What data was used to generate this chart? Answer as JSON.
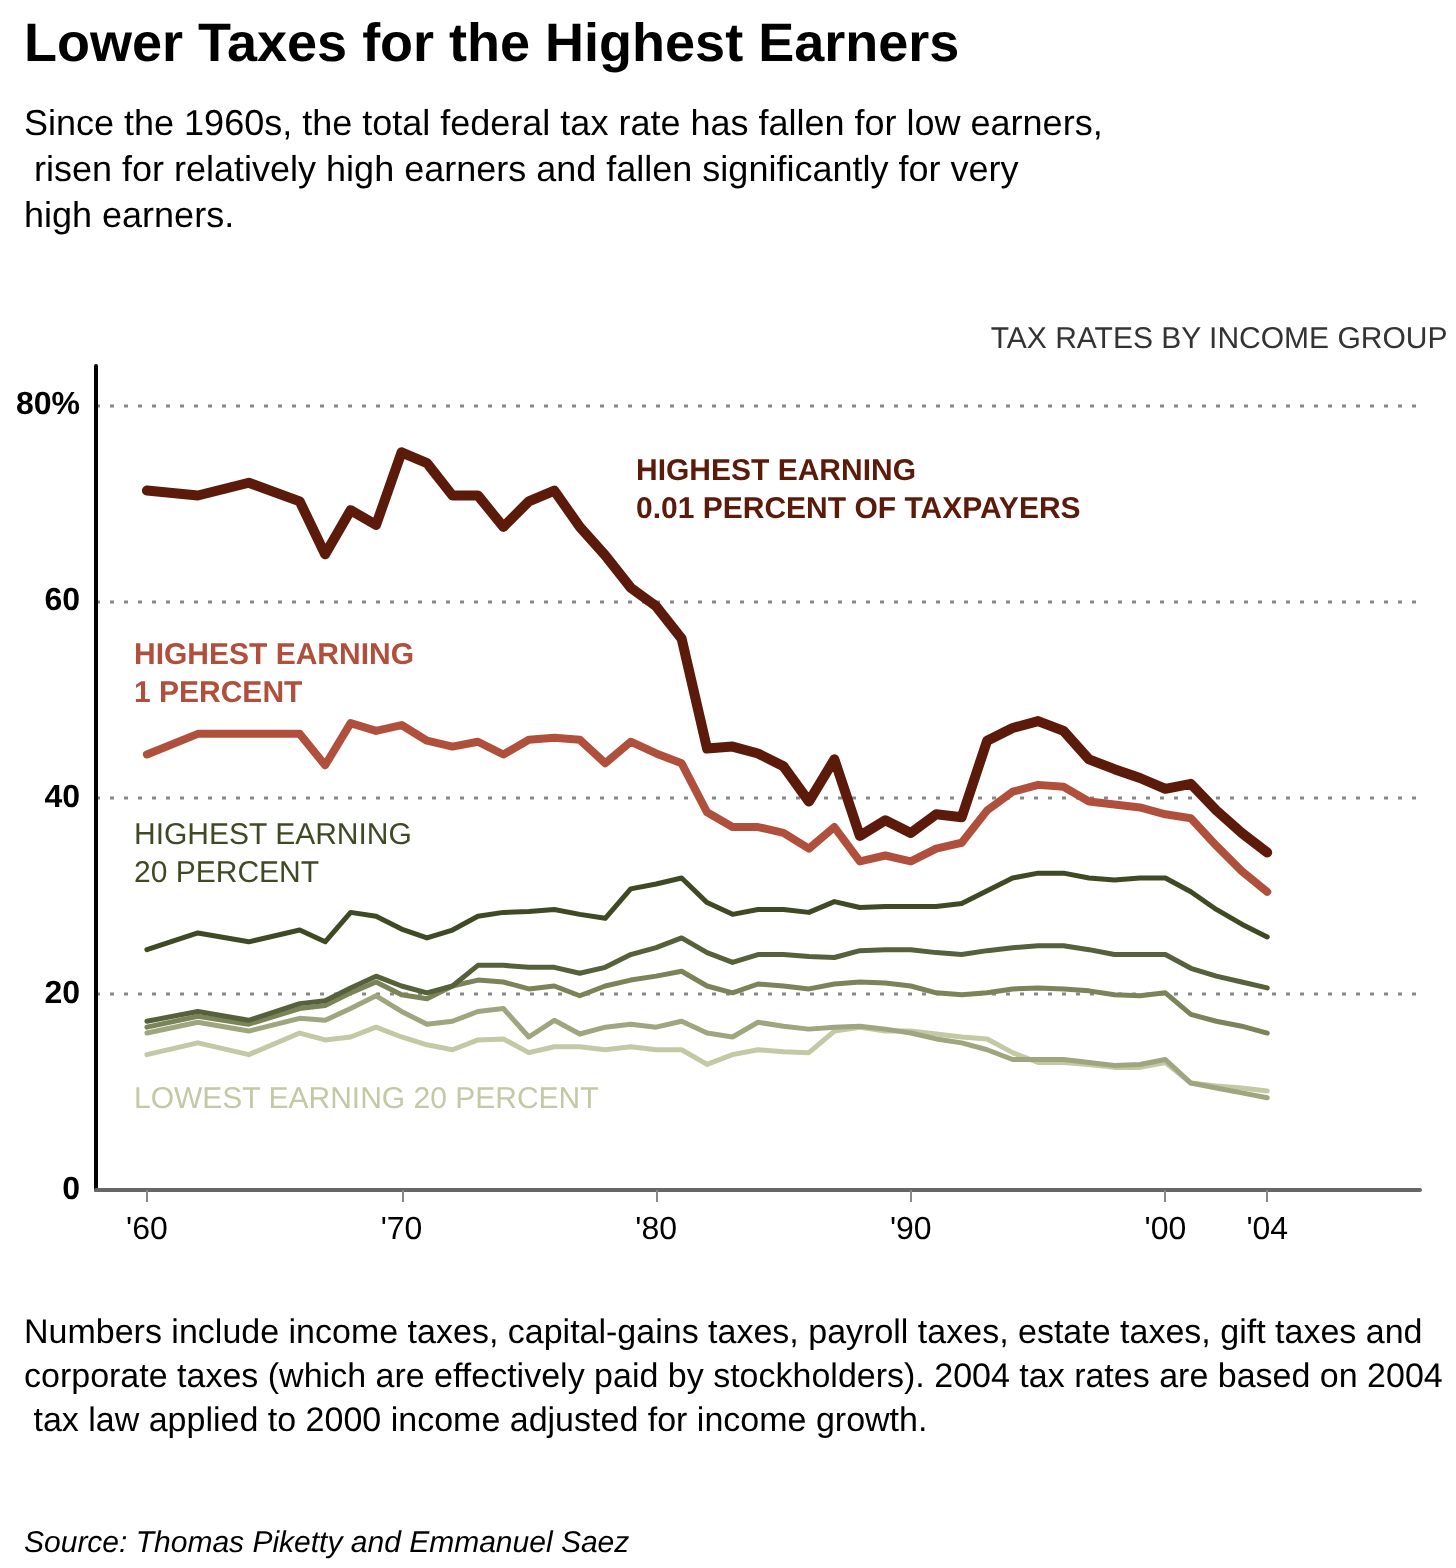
{
  "chart_data": {
    "type": "line",
    "title": "Lower Taxes for the Highest Earners",
    "subtitle": "Since the 1960s, the total federal tax rate has fallen for low earners, risen for relatively high earners and fallen significantly for very high earners.",
    "x": [
      1960,
      1962,
      1964,
      1966,
      1967,
      1968,
      1969,
      1970,
      1971,
      1972,
      1973,
      1974,
      1975,
      1976,
      1977,
      1978,
      1979,
      1980,
      1981,
      1982,
      1983,
      1984,
      1985,
      1986,
      1987,
      1988,
      1989,
      1990,
      1991,
      1992,
      1993,
      1994,
      1995,
      1996,
      1997,
      1998,
      1999,
      2000,
      2001,
      2002,
      2003,
      2004
    ],
    "series": [
      {
        "name": "HIGHEST EARNING 0.01 PERCENT OF TAXPAYERS",
        "color": "#5c1a0b",
        "values": [
          71.3,
          70.8,
          72.1,
          70.2,
          64.8,
          69.3,
          67.8,
          75.2,
          74.1,
          70.8,
          70.8,
          67.6,
          70.2,
          71.3,
          67.6,
          64.7,
          61.4,
          59.5,
          56.2,
          45,
          45.2,
          44.5,
          43.2,
          39.6,
          43.9,
          36.1,
          37.7,
          36.4,
          38.3,
          38,
          45.8,
          47.1,
          47.8,
          46.8,
          43.9,
          42.9,
          42,
          40.9,
          41.4,
          38.7,
          36.4,
          34.4
        ]
      },
      {
        "name": "HIGHEST EARNING 1 PERCENT",
        "color": "#b0503c",
        "values": [
          44.4,
          46.5,
          46.5,
          46.5,
          43.3,
          47.6,
          46.8,
          47.4,
          45.8,
          45.2,
          45.7,
          44.4,
          45.9,
          46.1,
          45.9,
          43.5,
          45.7,
          44.5,
          43.5,
          38.5,
          37,
          37,
          36.4,
          34.8,
          37,
          33.5,
          34.1,
          33.5,
          34.8,
          35.4,
          38.7,
          40.6,
          41.3,
          41.1,
          39.6,
          39.3,
          39,
          38.3,
          37.9,
          35.1,
          32.5,
          30.4
        ]
      },
      {
        "name": "HIGHEST EARNING 20 PERCENT",
        "color": "#3f4a25",
        "values": [
          24.5,
          26.2,
          25.3,
          26.5,
          25.3,
          28.3,
          27.9,
          26.6,
          25.7,
          26.5,
          27.9,
          28.3,
          28.4,
          28.6,
          28.1,
          27.7,
          30.7,
          31.2,
          31.8,
          29.3,
          28.1,
          28.6,
          28.6,
          28.3,
          29.4,
          28.8,
          28.9,
          28.9,
          28.9,
          29.2,
          30.5,
          31.8,
          32.3,
          32.3,
          31.8,
          31.6,
          31.8,
          31.8,
          30.4,
          28.6,
          27.1,
          25.8
        ]
      },
      {
        "color": "#56603a",
        "values": [
          17.2,
          18.2,
          17.3,
          19,
          19.3,
          20.6,
          21.8,
          20.8,
          20.1,
          20.8,
          22.9,
          22.9,
          22.7,
          22.7,
          22.1,
          22.7,
          24,
          24.7,
          25.7,
          24.2,
          23.2,
          24,
          24,
          23.8,
          23.7,
          24.4,
          24.5,
          24.5,
          24.2,
          24,
          24.4,
          24.7,
          24.9,
          24.9,
          24.5,
          24,
          24,
          24,
          22.6,
          21.8,
          21.2,
          20.6
        ]
      },
      {
        "color": "#7a8458",
        "values": [
          16.6,
          17.7,
          16.9,
          18.5,
          18.8,
          20.1,
          21.2,
          19.9,
          19.5,
          20.8,
          21.4,
          21.2,
          20.5,
          20.8,
          19.8,
          20.8,
          21.4,
          21.8,
          22.3,
          20.8,
          20.1,
          21,
          20.8,
          20.5,
          21,
          21.2,
          21.1,
          20.8,
          20.1,
          19.9,
          20.1,
          20.5,
          20.6,
          20.5,
          20.3,
          19.9,
          19.8,
          20.1,
          17.9,
          17.2,
          16.7,
          16
        ]
      },
      {
        "color": "#9ea67f",
        "values": [
          16,
          17.1,
          16.2,
          17.5,
          17.3,
          18.5,
          19.8,
          18.2,
          16.9,
          17.2,
          18.2,
          18.5,
          15.6,
          17.3,
          15.9,
          16.6,
          16.9,
          16.6,
          17.2,
          16,
          15.6,
          17.1,
          16.7,
          16.4,
          16.6,
          16.7,
          16.4,
          16,
          15.4,
          15,
          14.3,
          13.3,
          13.3,
          13.3,
          13,
          12.7,
          12.8,
          13.3,
          10.9,
          10.4,
          9.9,
          9.4
        ]
      },
      {
        "name": "LOWEST EARNING 20 PERCENT",
        "color": "#c3c9a5",
        "values": [
          13.8,
          15,
          13.8,
          16,
          15.3,
          15.6,
          16.6,
          15.6,
          14.8,
          14.3,
          15.3,
          15.4,
          14,
          14.6,
          14.6,
          14.3,
          14.6,
          14.3,
          14.3,
          12.8,
          13.8,
          14.3,
          14.1,
          14,
          16.2,
          16.6,
          16.2,
          16.2,
          15.9,
          15.6,
          15.4,
          14,
          13,
          13,
          12.8,
          12.5,
          12.5,
          13,
          10.9,
          10.6,
          10.4,
          10.1
        ]
      }
    ],
    "xlim": [
      1958,
      2010
    ],
    "xticks": [
      {
        "value": 1960,
        "label": "'60"
      },
      {
        "value": 1970,
        "label": "'70"
      },
      {
        "value": 1980,
        "label": "'80"
      },
      {
        "value": 1990,
        "label": "'90"
      },
      {
        "value": 2000,
        "label": "'00"
      },
      {
        "value": 2004,
        "label": "'04"
      }
    ],
    "ylim": [
      0,
      84
    ],
    "yticks": [
      0,
      20,
      40,
      60,
      {
        "value": 80,
        "label": "80%"
      }
    ],
    "grid": "y",
    "legend": false,
    "marker": "none",
    "line_style": "solid",
    "annotations": [
      "TAX RATES BY INCOME GROUP",
      "Numbers include income taxes, capital-gains taxes, payroll taxes, estate taxes, gift taxes and corporate taxes (which are effectively paid by stockholders). 2004 tax rates are based on 2004 tax law applied to 2000 income adjusted for income growth.",
      "Source: Thomas Piketty and Emmanuel Saez"
    ]
  }
}
